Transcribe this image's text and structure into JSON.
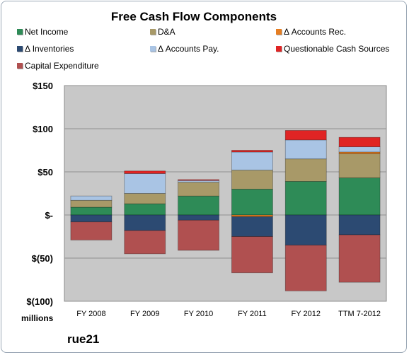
{
  "chart_data": {
    "type": "bar",
    "stacked": true,
    "title": "Free Cash Flow Components",
    "units_label": "millions",
    "company": "rue21",
    "categories": [
      "FY 2008",
      "FY 2009",
      "FY 2010",
      "FY 2011",
      "FY 2012",
      "TTM 7-2012"
    ],
    "ylim": [
      -100,
      150
    ],
    "yticks": [
      {
        "value": 150,
        "label": "$150"
      },
      {
        "value": 100,
        "label": "$100"
      },
      {
        "value": 50,
        "label": "$50"
      },
      {
        "value": 0,
        "label": "$-"
      },
      {
        "value": -50,
        "label": "$(50)"
      },
      {
        "value": -100,
        "label": "$(100)"
      }
    ],
    "grid": true,
    "legend_position": "top",
    "series": [
      {
        "name": "Net Income",
        "color": "#2e8b57",
        "values": [
          9,
          13,
          22,
          30,
          39,
          43
        ]
      },
      {
        "name": "D&A",
        "color": "#a89968",
        "values": [
          8,
          12,
          16,
          22,
          26,
          28
        ]
      },
      {
        "name": "Δ Accounts Rec.",
        "color": "#e67e22",
        "values": [
          0,
          0,
          0,
          -2,
          0,
          2
        ]
      },
      {
        "name": "Δ Inventories",
        "color": "#2c4a72",
        "values": [
          -8,
          -18,
          -6,
          -23,
          -35,
          -23
        ]
      },
      {
        "name": "Δ Accounts Pay.",
        "color": "#a9c4e4",
        "values": [
          5,
          23,
          2,
          21,
          22,
          6
        ]
      },
      {
        "name": "Questionable Cash Sources",
        "color": "#e02424",
        "values": [
          0,
          3,
          1,
          2,
          11,
          11
        ]
      },
      {
        "name": "Capital Expenditure",
        "color": "#b05050",
        "values": [
          -21,
          -27,
          -35,
          -42,
          -53,
          -55
        ]
      }
    ]
  }
}
